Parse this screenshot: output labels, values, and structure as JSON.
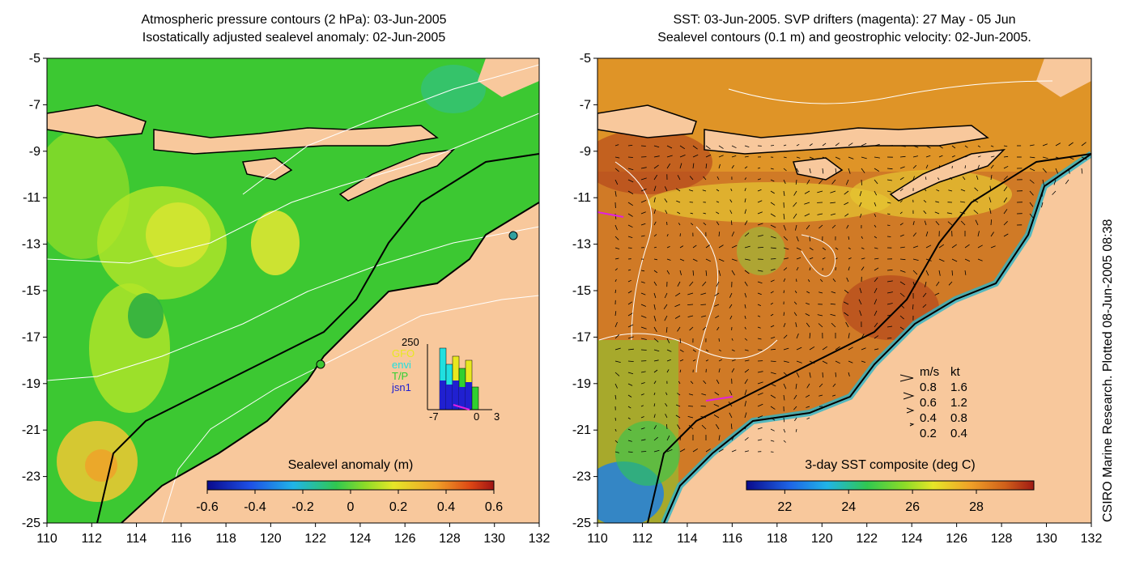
{
  "left_panel": {
    "title_line1": "Atmospheric pressure contours (2 hPa): 03-Jun-2005",
    "title_line2": "Isostatically adjusted sealevel anomaly: 02-Jun-2005",
    "colorbar": {
      "label": "Sealevel anomaly (m)",
      "ticks": [
        "-0.6",
        "-0.4",
        "-0.2",
        "0",
        "0.2",
        "0.4",
        "0.6"
      ]
    },
    "inset": {
      "ytick_top": "250",
      "xticks": [
        "-7",
        "0",
        "3"
      ],
      "legend": [
        {
          "label": "GFO",
          "color": "#e8e820"
        },
        {
          "label": "envi",
          "color": "#20e0e0"
        },
        {
          "label": "T/P",
          "color": "#30d030"
        },
        {
          "label": "jsn1",
          "color": "#2020d0"
        }
      ]
    }
  },
  "right_panel": {
    "title_line1": "SST: 03-Jun-2005. SVP drifters (magenta): 27 May - 05 Jun",
    "title_line2": "Sealevel contours (0.1 m) and geostrophic velocity: 02-Jun-2005.",
    "colorbar": {
      "label": "3-day SST composite (deg C)",
      "ticks": [
        "22",
        "24",
        "26",
        "28"
      ]
    },
    "velocity_legend": {
      "header_ms": "m/s",
      "header_kt": "kt",
      "rows": [
        {
          "ms": "0.8",
          "kt": "1.6"
        },
        {
          "ms": "0.6",
          "kt": "1.2"
        },
        {
          "ms": "0.4",
          "kt": "0.8"
        },
        {
          "ms": "0.2",
          "kt": "0.4"
        }
      ]
    }
  },
  "axes": {
    "lat_ticks": [
      "-5",
      "-7",
      "-9",
      "-11",
      "-13",
      "-15",
      "-17",
      "-19",
      "-21",
      "-23",
      "-25"
    ],
    "lon_ticks": [
      "110",
      "112",
      "114",
      "116",
      "118",
      "120",
      "122",
      "124",
      "126",
      "128",
      "130",
      "132"
    ]
  },
  "credit": "CSIRO Marine Research. Plotted 08-Jun-2005 08:38",
  "colors": {
    "land": "#f8c89c",
    "sealevel_base": "#3cc832",
    "sst_base": "#d07a26"
  }
}
